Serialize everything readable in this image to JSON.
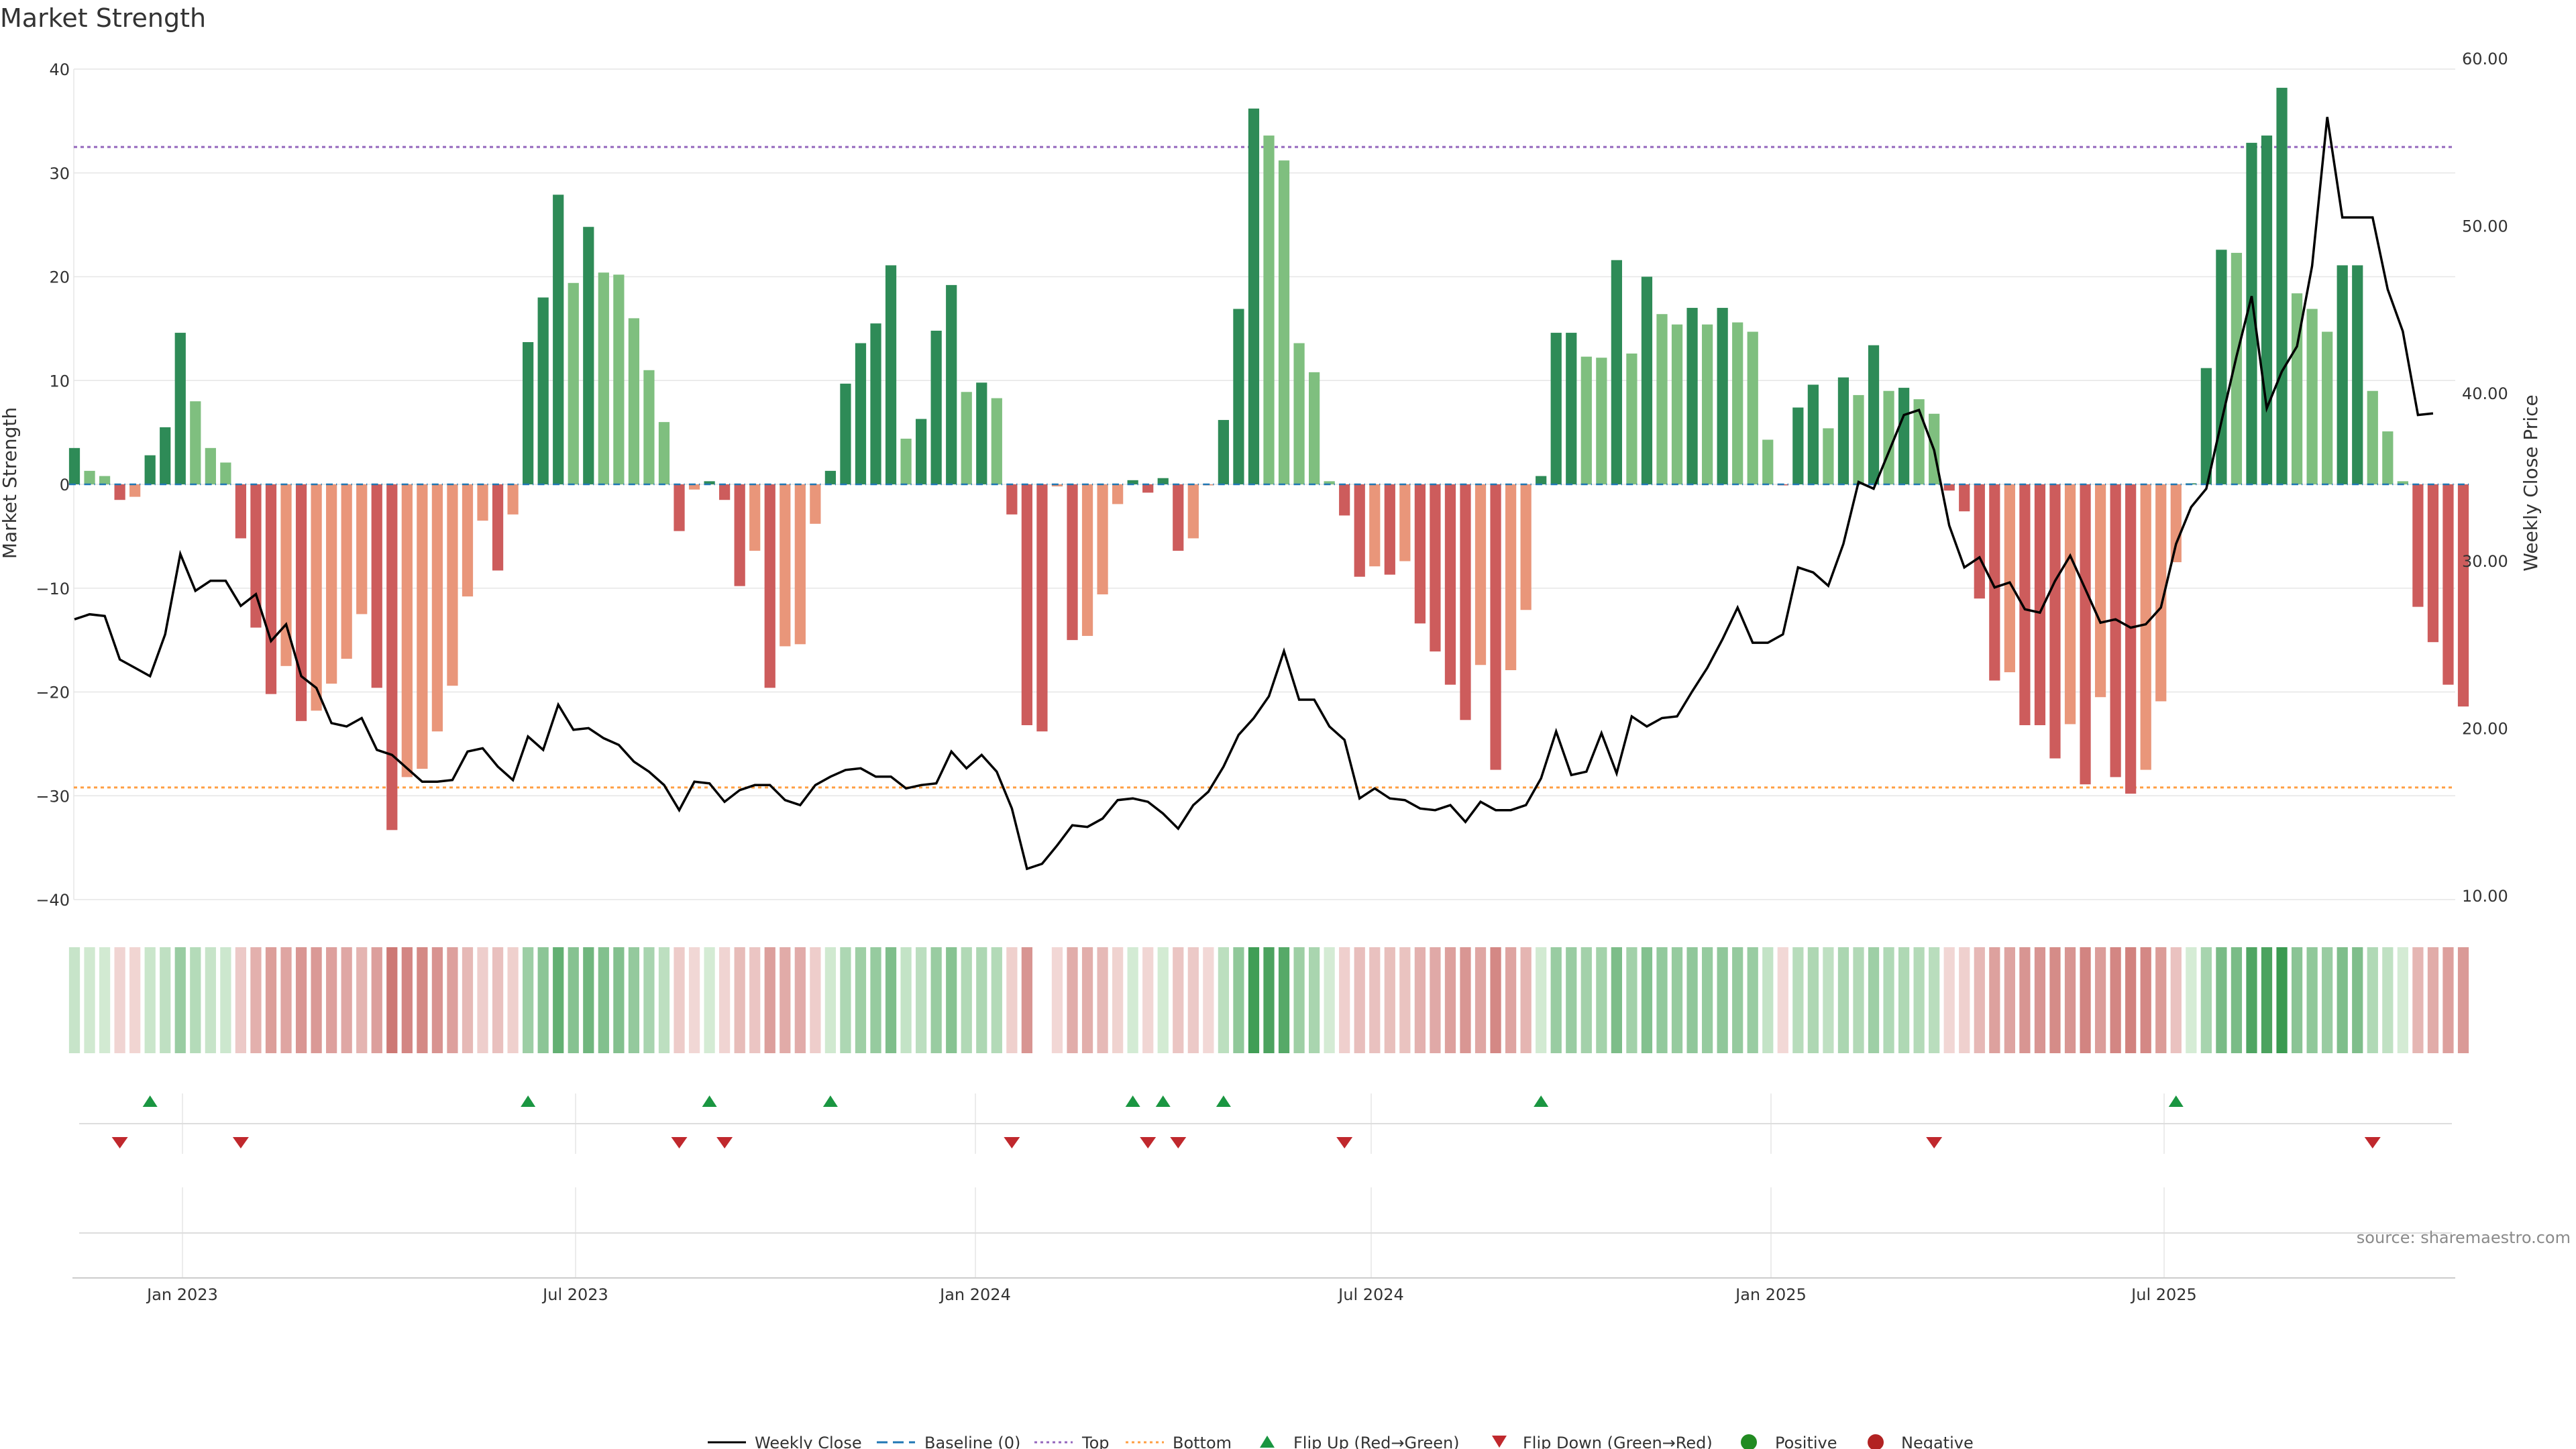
{
  "colors": {
    "green_dark": "#2e8b57",
    "green_light": "#7fbf7f",
    "red_dark": "#cd5c5c",
    "red_light": "#e9967a",
    "top_line": "#9467bd",
    "bottom_line": "#ff9f43",
    "baseline": "#1f77b4",
    "price_line": "#000000",
    "flip_up": "#1a9641",
    "flip_down": "#c0282d"
  },
  "chart_data": {
    "type": "bar+line",
    "title": "Market Strength",
    "ylabel": "Market Strength",
    "y2label": "Weekly Close Price",
    "ylim": [
      -40,
      40
    ],
    "y2lim": [
      10,
      60
    ],
    "yticks": [
      "40",
      "30",
      "20",
      "10",
      "0",
      "−10",
      "−20",
      "−30",
      "−40"
    ],
    "y2ticks": [
      "60.00",
      "50.00",
      "40.00",
      "30.00",
      "20.00",
      "10.00"
    ],
    "xlabels": [
      "Jan 2023",
      "Jul 2023",
      "Jan 2024",
      "Jul 2024",
      "Jan 2025",
      "Jul 2025"
    ],
    "top_level": 32.5,
    "bottom_level": -29.2,
    "baseline_level": 0,
    "strength": [
      3.5,
      1.3,
      0.8,
      -1.5,
      -1.2,
      2.8,
      5.5,
      14.6,
      8,
      3.5,
      2.1,
      -5.2,
      -13.8,
      -20.2,
      -17.5,
      -22.8,
      -21.8,
      -19.2,
      -16.8,
      -12.5,
      -19.6,
      -33.3,
      -28.2,
      -27.4,
      -23.8,
      -19.4,
      -10.8,
      -3.5,
      -8.3,
      -2.9,
      13.7,
      18,
      27.9,
      19.4,
      24.8,
      20.4,
      20.2,
      16,
      11,
      6,
      -4.5,
      -0.5,
      0.3,
      -1.5,
      -9.8,
      -6.4,
      -19.6,
      -15.6,
      -15.4,
      -3.8,
      1.3,
      9.7,
      13.6,
      15.5,
      21.1,
      4.4,
      6.3,
      14.8,
      19.2,
      8.9,
      9.8,
      8.3,
      -2.9,
      -23.2,
      -23.8,
      -0.2,
      -15,
      -14.6,
      -10.6,
      -1.9,
      0.4,
      -0.8,
      0.6,
      -6.4,
      -5.2,
      -0.1,
      6.2,
      16.9,
      36.2,
      33.6,
      31.2,
      13.6,
      10.8,
      0.3,
      -3,
      -8.9,
      -7.9,
      -8.7,
      -7.4,
      -13.4,
      -16.1,
      -19.3,
      -22.7,
      -17.4,
      -27.5,
      -17.9,
      -12.1,
      0.8,
      14.6,
      14.6,
      12.3,
      12.2,
      21.6,
      12.6,
      20,
      16.4,
      15.4,
      17,
      15.4,
      17,
      15.6,
      14.7,
      4.3,
      -0.1,
      7.4,
      9.6,
      5.4,
      10.3,
      8.6,
      13.4,
      9,
      9.3,
      8.2,
      6.8,
      -0.6,
      -2.6,
      -11,
      -18.9,
      -18.1,
      -23.2,
      -23.2,
      -26.4,
      -23.1,
      -28.9,
      -20.5,
      -28.2,
      -29.8,
      -27.5,
      -20.9,
      -7.5,
      0.1,
      11.2,
      22.6,
      22.3,
      32.9,
      33.6,
      38.2,
      18.4,
      16.9,
      14.7,
      21.1,
      21.1,
      9,
      5.1,
      0.3,
      -11.8,
      -15.2,
      -19.3,
      -21.4
    ],
    "price": [
      26.5,
      26.8,
      26.7,
      24.1,
      23.6,
      23.1,
      25.6,
      30.4,
      28.2,
      28.8,
      28.8,
      27.3,
      28,
      25.2,
      26.2,
      23.1,
      22.4,
      20.3,
      20.1,
      20.6,
      18.7,
      18.4,
      17.6,
      16.8,
      16.8,
      16.9,
      18.6,
      18.8,
      17.7,
      16.9,
      19.5,
      18.7,
      21.4,
      19.9,
      20,
      19.4,
      19,
      18,
      17.4,
      16.6,
      15.1,
      16.8,
      16.7,
      15.6,
      16.3,
      16.6,
      16.6,
      15.7,
      15.4,
      16.6,
      17.1,
      17.5,
      17.6,
      17.1,
      17.1,
      16.4,
      16.6,
      16.7,
      18.6,
      17.6,
      18.4,
      17.4,
      15.2,
      11.6,
      11.9,
      13,
      14.2,
      14.1,
      14.6,
      15.7,
      15.8,
      15.6,
      14.9,
      14,
      15.4,
      16.2,
      17.7,
      19.6,
      20.6,
      21.9,
      24.6,
      21.7,
      21.7,
      20.1,
      19.3,
      15.8,
      16.4,
      15.8,
      15.7,
      15.2,
      15.1,
      15.4,
      14.4,
      15.6,
      15.1,
      15.1,
      15.4,
      17,
      19.8,
      17.2,
      17.4,
      19.7,
      17.3,
      20.7,
      20.1,
      20.6,
      20.7,
      22.2,
      23.6,
      25.3,
      27.2,
      25.1,
      25.1,
      25.6,
      29.6,
      29.3,
      28.5,
      31,
      34.7,
      34.3,
      36.5,
      38.7,
      39,
      36.6,
      32.1,
      29.6,
      30.2,
      28.4,
      28.7,
      27.1,
      26.9,
      28.8,
      30.3,
      28.3,
      26.3,
      26.5,
      26,
      26.2,
      27.2,
      31,
      33.2,
      34.3,
      38.3,
      42.2,
      45.8,
      39.1,
      41.3,
      42.8,
      47.6,
      56.5,
      50.5,
      50.5,
      50.5,
      46.2,
      43.7,
      38.7,
      38.8
    ],
    "flip_up_idx": [
      5,
      30,
      42,
      50,
      70,
      72,
      76,
      97,
      139
    ],
    "flip_down_idx": [
      3,
      11,
      40,
      43,
      62,
      71,
      73,
      84,
      123,
      152
    ],
    "legend": [
      "Weekly Close",
      "Baseline (0)",
      "Top",
      "Bottom",
      "Flip Up (Red→Green)",
      "Flip Down (Green→Red)",
      "Positive",
      "Negative"
    ],
    "source": "source: sharemaestro.com"
  }
}
